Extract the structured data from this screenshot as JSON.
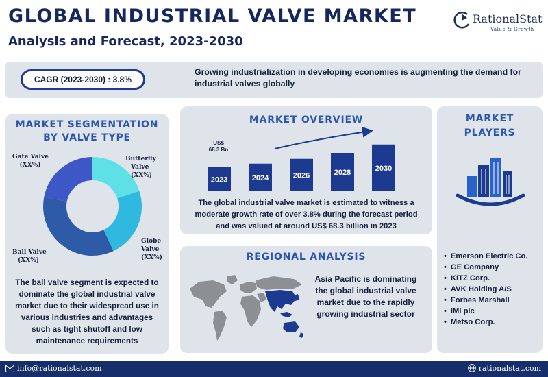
{
  "header": {
    "title": "GLOBAL INDUSTRIAL VALVE MARKET",
    "subtitle": "Analysis and Forecast, 2023-2030"
  },
  "logo": {
    "name": "RationalStat",
    "tagline": "Value & Growth",
    "icon": "rationalstat-logo-icon"
  },
  "cagr": {
    "label": "CAGR (2023-2030) : 3.8%",
    "text": "Growing industrialization in developing economies is augmenting the demand for industrial valves globally"
  },
  "segmentation": {
    "heading_line1": "MARKET SEGMENTATION",
    "heading_line2": "BY VALVE TYPE",
    "segments": [
      {
        "name": "Gate Valve",
        "share": "(XX%)",
        "color": "#3d58c6",
        "fraction": 0.22
      },
      {
        "name": "Butterfly",
        "name2": "Valve",
        "share": "(XX%)",
        "color": "#5fe0e6",
        "fraction": 0.2
      },
      {
        "name": "Globe",
        "name2": "Valve",
        "share": "(XX%)",
        "color": "#2fb9de",
        "fraction": 0.23
      },
      {
        "name": "Ball Valve",
        "share": "(XX%)",
        "color": "#2e5ba8",
        "fraction": 0.35
      }
    ],
    "text": "The ball valve segment is expected to dominate the global industrial valve market due to their widespread use in various industries and advantages such as tight shutoff and low maintenance requirements"
  },
  "overview": {
    "heading": "MARKET OVERVIEW",
    "value_label_line1": "US$",
    "value_label_line2": "68.3 Bn",
    "bar_color": "#1c3a8f",
    "text": "The global industrial valve market is estimated to witness a moderate growth rate of over 3.8% during the forecast period and was valued at around US$ 68.3 billion in 2023"
  },
  "chart_data": {
    "type": "bar",
    "categories": [
      "2023",
      "2024",
      "2026",
      "2028",
      "2030"
    ],
    "values": [
      1.0,
      1.15,
      1.35,
      1.6,
      1.95
    ],
    "ylim": [
      0,
      2
    ]
  },
  "regional": {
    "heading": "REGIONAL ANALYSIS",
    "text": "Asia Pacific is dominating the global industrial valve market due to the rapidly growing industrial sector",
    "map_icon": "world-map-icon",
    "highlight_color": "#1c3a8f"
  },
  "players": {
    "heading_line1": "MARKET",
    "heading_line2": "PLAYERS",
    "icon": "city-buildings-icon",
    "items": [
      "Emerson Electric Co.",
      "GE Company",
      "KITZ Corp.",
      "AVK Holding A/S",
      "Forbes Marshall",
      "IMI plc",
      "Metso Corp."
    ]
  },
  "footer": {
    "email": "info@rationalstat.com",
    "website": "rationalstat.com",
    "email_icon": "mail-icon",
    "web_icon": "globe-icon"
  }
}
